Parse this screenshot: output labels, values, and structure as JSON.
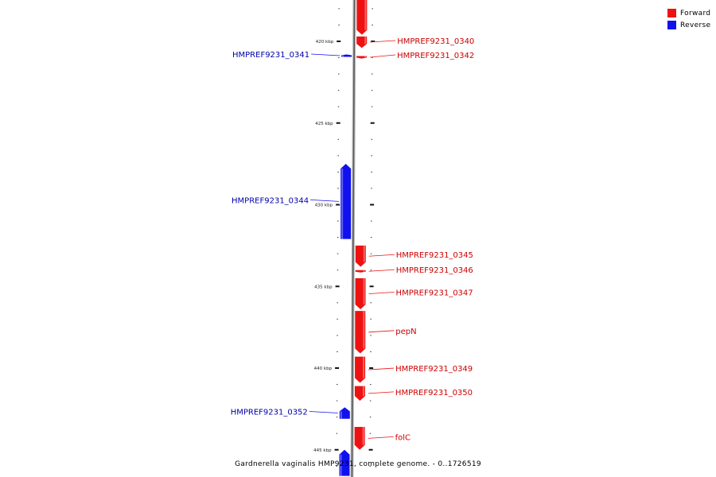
{
  "legend": {
    "forward_label": "Forward",
    "forward_color": "#ee1111",
    "reverse_label": "Reverse",
    "reverse_color": "#1111ee"
  },
  "caption": "Gardnerella vaginalis HMP9231, complete genome. - 0..1726519",
  "axis": {
    "unit": "kbp",
    "ticks": [
      {
        "pos_kbp": 420,
        "label": "420 kbp"
      },
      {
        "pos_kbp": 425,
        "label": "425 kbp"
      },
      {
        "pos_kbp": 430,
        "label": "430 kbp"
      },
      {
        "pos_kbp": 435,
        "label": "435 kbp"
      },
      {
        "pos_kbp": 440,
        "label": "440 kbp"
      },
      {
        "pos_kbp": 445,
        "label": "445 kbp"
      }
    ]
  },
  "genes": [
    {
      "label": "",
      "strand": "forward",
      "start_kbp": 417.2,
      "end_kbp": 419.6
    },
    {
      "label": "HMPREF9231_0340",
      "strand": "forward",
      "start_kbp": 419.7,
      "end_kbp": 420.4
    },
    {
      "label": "HMPREF9231_0342",
      "strand": "forward",
      "start_kbp": 420.9,
      "end_kbp": 421.05
    },
    {
      "label": "HMPREF9231_0341",
      "strand": "reverse",
      "start_kbp": 420.8,
      "end_kbp": 420.95
    },
    {
      "label": "HMPREF9231_0344",
      "strand": "reverse",
      "start_kbp": 427.5,
      "end_kbp": 432.1
    },
    {
      "label": "HMPREF9231_0345",
      "strand": "forward",
      "start_kbp": 432.5,
      "end_kbp": 433.8
    },
    {
      "label": "HMPREF9231_0346",
      "strand": "forward",
      "start_kbp": 434.0,
      "end_kbp": 434.15
    },
    {
      "label": "HMPREF9231_0347",
      "strand": "forward",
      "start_kbp": 434.5,
      "end_kbp": 436.4
    },
    {
      "label": "pepN",
      "strand": "forward",
      "start_kbp": 436.5,
      "end_kbp": 439.1
    },
    {
      "label": "HMPREF9231_0349",
      "strand": "forward",
      "start_kbp": 439.3,
      "end_kbp": 440.9
    },
    {
      "label": "HMPREF9231_0350",
      "strand": "forward",
      "start_kbp": 441.1,
      "end_kbp": 442.0
    },
    {
      "label": "HMPREF9231_0352",
      "strand": "reverse",
      "start_kbp": 442.4,
      "end_kbp": 443.1
    },
    {
      "label": "folC",
      "strand": "forward",
      "start_kbp": 443.6,
      "end_kbp": 445.0
    },
    {
      "label": "",
      "strand": "reverse",
      "start_kbp": 445.0,
      "end_kbp": 446.6
    }
  ]
}
